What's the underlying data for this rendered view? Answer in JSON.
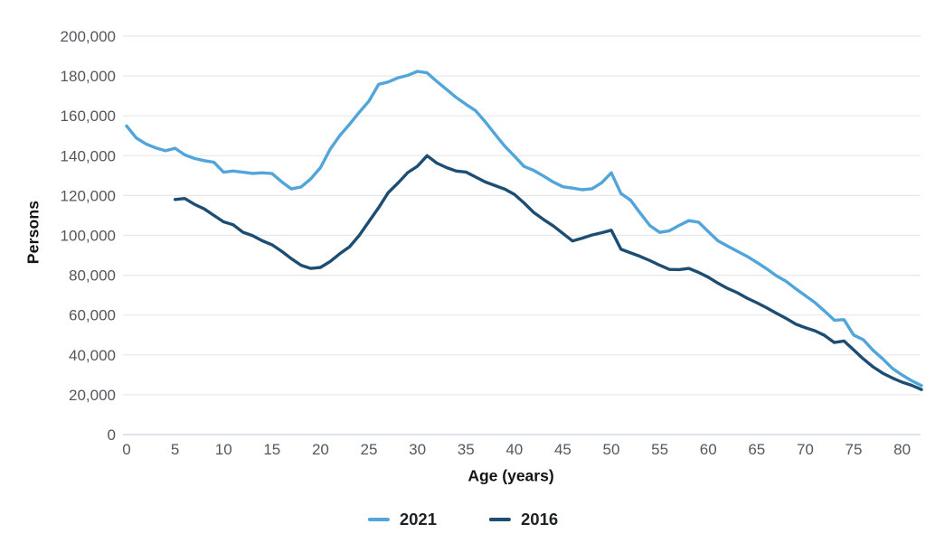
{
  "figure": {
    "title": "",
    "y_axis_title": "Persons",
    "x_axis_title": "Age (years)"
  },
  "legend": [
    {
      "label": "2021",
      "color": "#51a5da"
    },
    {
      "label": "2016",
      "color": "#1d4d72"
    }
  ],
  "colors": {
    "series_2021": "#51a5da",
    "series_2016": "#1d4d72",
    "gridline": "#e8e8ea",
    "zero_axis_line": "#d3dce8",
    "tick_text": "#54575c",
    "axis_title_text": "#131417",
    "background": "#ffffff"
  },
  "chart_data": {
    "type": "line",
    "title": "",
    "xlabel": "Age (years)",
    "ylabel": "Persons",
    "xlim": [
      0,
      82.5
    ],
    "ylim": [
      0,
      200000
    ],
    "grid": true,
    "legend_position": "bottom-center",
    "x_ticks": [
      0,
      5,
      10,
      15,
      20,
      25,
      30,
      35,
      40,
      45,
      50,
      55,
      60,
      65,
      70,
      75,
      80
    ],
    "x_tick_labels": [
      "0",
      "5",
      "10",
      "15",
      "20",
      "25",
      "30",
      "35",
      "40",
      "45",
      "50",
      "55",
      "60",
      "65",
      "70",
      "75",
      "80"
    ],
    "y_ticks": [
      0,
      20000,
      40000,
      60000,
      80000,
      100000,
      120000,
      140000,
      160000,
      180000,
      200000
    ],
    "y_tick_labels": [
      "0",
      "20,000",
      "40,000",
      "60,000",
      "80,000",
      "100,000",
      "120,000",
      "140,000",
      "160,000",
      "180,000",
      "200,000"
    ],
    "series": [
      {
        "name": "2021",
        "color": "#51a5da",
        "start_age": 0,
        "ages_note": "one value per single year of age, ages 0-82",
        "values": [
          154900,
          148900,
          145900,
          143900,
          142500,
          143700,
          140400,
          138600,
          137500,
          136700,
          131700,
          132300,
          131700,
          131100,
          131400,
          131000,
          126900,
          123300,
          124300,
          128400,
          134000,
          143200,
          150100,
          155800,
          161800,
          167400,
          175800,
          177000,
          179100,
          180300,
          182300,
          181600,
          177300,
          173300,
          169200,
          165800,
          162600,
          157000,
          150800,
          144800,
          139800,
          134600,
          132600,
          129800,
          126800,
          124400,
          123700,
          122900,
          123400,
          126400,
          131400,
          121000,
          117600,
          111000,
          104800,
          101500,
          102300,
          105000,
          107400,
          106600,
          101900,
          97300,
          94600,
          92000,
          89500,
          86500,
          83300,
          79800,
          77000,
          73300,
          69800,
          66300,
          62000,
          57400,
          57700,
          50000,
          47600,
          42300,
          38000,
          33200,
          29900,
          27000,
          24600
        ]
      },
      {
        "name": "2016",
        "color": "#1d4d72",
        "start_age": 5,
        "ages_note": "one value per single year of age, ages 5-82",
        "values": [
          118000,
          118500,
          115600,
          113300,
          110000,
          106800,
          105300,
          101600,
          99800,
          97300,
          95300,
          92000,
          88300,
          85000,
          83400,
          83900,
          86900,
          90800,
          94300,
          100000,
          107000,
          113900,
          121500,
          126300,
          131500,
          134700,
          140000,
          136300,
          134000,
          132300,
          131800,
          129300,
          126800,
          125000,
          123200,
          120600,
          116300,
          111500,
          108000,
          104800,
          101000,
          97200,
          98600,
          100200,
          101300,
          102600,
          93000,
          91200,
          89400,
          87300,
          85000,
          82900,
          82800,
          83400,
          81400,
          79000,
          76000,
          73400,
          71200,
          68500,
          66200,
          63700,
          61000,
          58400,
          55500,
          53700,
          52100,
          49800,
          46200,
          47000,
          42500,
          38000,
          34000,
          30800,
          28400,
          26300,
          24700,
          22600
        ]
      }
    ]
  }
}
